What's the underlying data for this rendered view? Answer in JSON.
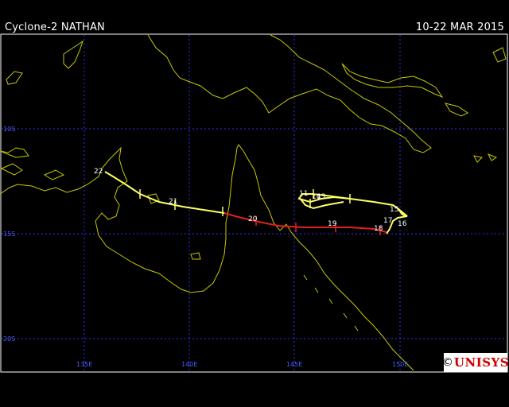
{
  "header": {
    "title": "Cyclone-2 NATHAN",
    "dates": "10-22 MAR 2015"
  },
  "map": {
    "lon_labels": [
      "135E",
      "140E",
      "145E",
      "150E"
    ],
    "lat_labels": [
      "10S",
      "15S",
      "20S"
    ],
    "lon_values": [
      135,
      140,
      145,
      150
    ],
    "lat_values": [
      -10,
      -15,
      -20
    ],
    "grid_color": "#3030ff",
    "coast_color": "#c8c800"
  },
  "track": {
    "yellow_color": "#ffff66",
    "red_color": "#e02020",
    "day_labels": [
      "11",
      "12",
      "13",
      "14",
      "15",
      "16",
      "17",
      "18",
      "19",
      "20",
      "21",
      "22"
    ]
  },
  "logo": {
    "copyright": "©",
    "brand": "UNISYS",
    "color": "#d00000"
  }
}
